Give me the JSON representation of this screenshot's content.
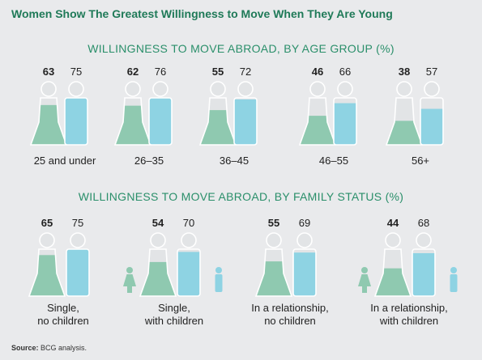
{
  "title": "Women Show The Greatest Willingness to Move When They Are Young",
  "source_label": "Source:",
  "source_text": "BCG analysis.",
  "colors": {
    "women": "#8fc9b0",
    "men": "#8ed3e3",
    "outline": "#ffffff",
    "bg_fill": "#e2e4e6",
    "title": "#1f7a58",
    "section": "#2a8f6a"
  },
  "chart_data": [
    {
      "type": "bar",
      "title": "WILLINGNESS TO MOVE ABROAD, BY AGE GROUP (%)",
      "categories": [
        "25 and under",
        "26–35",
        "36–45",
        "46–55",
        "56+"
      ],
      "series": [
        {
          "values": [
            63,
            62,
            55,
            46,
            38
          ]
        },
        {
          "values": [
            75,
            76,
            72,
            66,
            57
          ]
        }
      ],
      "ylim": [
        0,
        100
      ]
    },
    {
      "type": "bar",
      "title": "WILLINGNESS TO MOVE ABROAD, BY FAMILY STATUS (%)",
      "categories": [
        "Single,\nno children",
        "Single,\nwith children",
        "In a relationship,\nno children",
        "In a relationship,\nwith children"
      ],
      "series": [
        {
          "values": [
            65,
            54,
            55,
            44
          ]
        },
        {
          "values": [
            75,
            70,
            69,
            68
          ]
        }
      ],
      "ylim": [
        0,
        100
      ]
    }
  ]
}
